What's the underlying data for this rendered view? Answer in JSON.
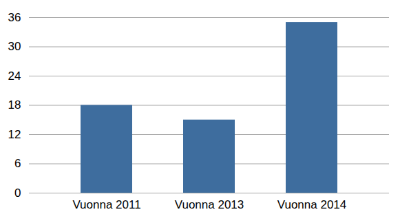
{
  "chart_data": {
    "type": "bar",
    "categories": [
      "Vuonna 2011",
      "Vuonna 2013",
      "Vuonna 2014"
    ],
    "values": [
      18,
      15,
      35
    ],
    "color": "#3e6d9e",
    "ylim": [
      0,
      36
    ],
    "yticks": [
      0,
      6,
      12,
      18,
      24,
      30,
      36
    ],
    "grid": true
  }
}
